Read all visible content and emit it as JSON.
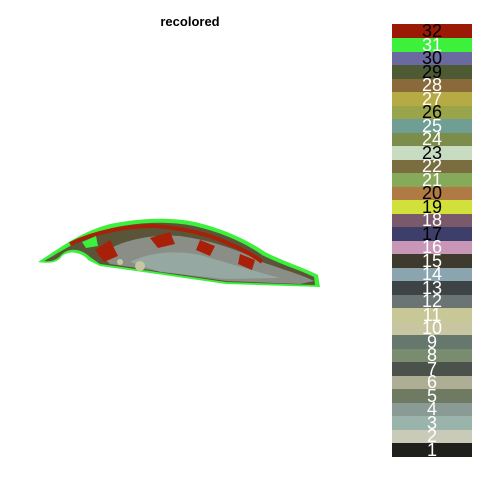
{
  "title": "recolored",
  "legend": {
    "items": [
      {
        "label": "1",
        "color": "#1f1f1b"
      },
      {
        "label": "2",
        "color": "#c9cbb8"
      },
      {
        "label": "3",
        "color": "#9ab4ac"
      },
      {
        "label": "4",
        "color": "#8a9a94"
      },
      {
        "label": "5",
        "color": "#6e7a62"
      },
      {
        "label": "6",
        "color": "#aeae94"
      },
      {
        "label": "7",
        "color": "#4b524c"
      },
      {
        "label": "8",
        "color": "#7a8c70"
      },
      {
        "label": "9",
        "color": "#66786e"
      },
      {
        "label": "10",
        "color": "#c8c6a0"
      },
      {
        "label": "11",
        "color": "#c8c896"
      },
      {
        "label": "12",
        "color": "#6a7472"
      },
      {
        "label": "13",
        "color": "#3e4446"
      },
      {
        "label": "14",
        "color": "#8aa4b0"
      },
      {
        "label": "15",
        "color": "#3e3a2e"
      },
      {
        "label": "16",
        "color": "#c896b6"
      },
      {
        "label": "17",
        "color": "#3e3e6a"
      },
      {
        "label": "18",
        "color": "#7a5a6a"
      },
      {
        "label": "19",
        "color": "#d2e03c"
      },
      {
        "label": "20",
        "color": "#b07a44"
      },
      {
        "label": "21",
        "color": "#86aa5a"
      },
      {
        "label": "22",
        "color": "#7a6e40"
      },
      {
        "label": "23",
        "color": "#c8dcc2"
      },
      {
        "label": "24",
        "color": "#7c8c4a"
      },
      {
        "label": "25",
        "color": "#6e9e94"
      },
      {
        "label": "26",
        "color": "#9aa44a"
      },
      {
        "label": "27",
        "color": "#b6aa44"
      },
      {
        "label": "28",
        "color": "#8a6a3a"
      },
      {
        "label": "29",
        "color": "#4e5a34"
      },
      {
        "label": "30",
        "color": "#6a6aa0"
      },
      {
        "label": "31",
        "color": "#3cf03c"
      },
      {
        "label": "32",
        "color": "#9a1a06"
      }
    ]
  },
  "colors": {
    "body": "#5a5438",
    "body_light": "#8a8e86",
    "stripe": "#a82008",
    "edge": "#3cf03c"
  }
}
